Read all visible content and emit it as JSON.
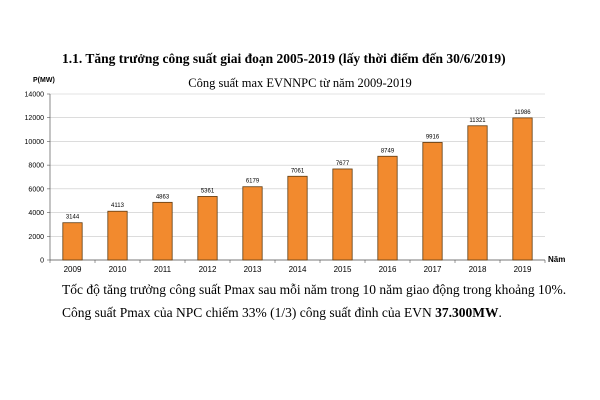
{
  "heading": "1.1. Tăng trưởng công suất giai đoạn 2005-2019 (lấy thời điểm đến 30/6/2019)",
  "chart_data": {
    "type": "bar",
    "title": "Công suất max EVNNPC từ năm 2009-2019",
    "ylabel": "P(MW)",
    "xlabel": "Năm",
    "categories": [
      "2009",
      "2010",
      "2011",
      "2012",
      "2013",
      "2014",
      "2015",
      "2016",
      "2017",
      "2018",
      "2019"
    ],
    "values": [
      3144,
      4113,
      4863,
      5361,
      6179,
      7061,
      7677,
      8749,
      9916,
      11321,
      11986
    ],
    "ylim": [
      0,
      14000
    ],
    "yticks": [
      0,
      2000,
      4000,
      6000,
      8000,
      10000,
      12000,
      14000
    ],
    "grid": true,
    "bar_color": "#F28A2E",
    "bar_edge_color": "#5C3A12"
  },
  "text": {
    "line1": "Tốc độ tăng trưởng công suất Pmax sau mỗi năm trong 10 năm giao động trong khoảng 10%.",
    "line2_prefix": "Công suất Pmax của NPC chiếm 33% (1/3) công suất đỉnh của EVN ",
    "line2_bold": "37.300MW",
    "line2_suffix": "."
  }
}
